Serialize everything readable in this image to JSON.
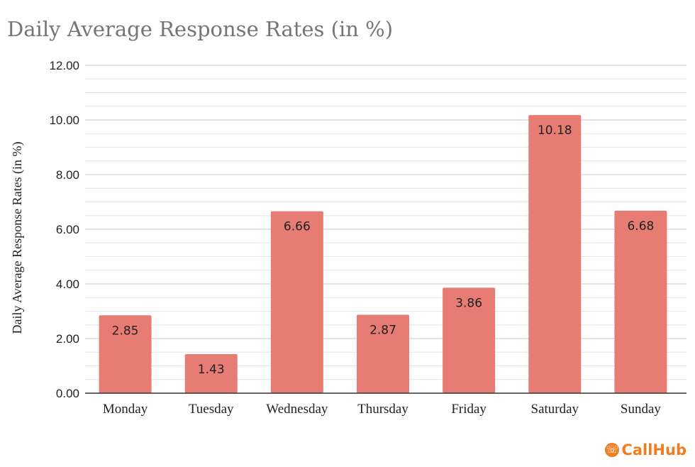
{
  "chart_data": {
    "type": "bar",
    "title": "Daily Average Response Rates (in %)",
    "ylabel": "Daily Average Response Rates (in %)",
    "xlabel": "",
    "categories": [
      "Monday",
      "Tuesday",
      "Wednesday",
      "Thursday",
      "Friday",
      "Saturday",
      "Sunday"
    ],
    "values": [
      2.85,
      1.43,
      6.66,
      2.87,
      3.86,
      10.18,
      6.68
    ],
    "data_labels": [
      "2.85",
      "1.43",
      "6.66",
      "2.87",
      "3.86",
      "10.18",
      "6.68"
    ],
    "ylim": [
      0,
      12
    ],
    "yticks": [
      "0.00",
      "2.00",
      "4.00",
      "6.00",
      "8.00",
      "10.00",
      "12.00"
    ],
    "bar_color": "#e67c73",
    "grid": true,
    "legend": "none"
  },
  "brand": {
    "name": "CallHub",
    "color": "#ef7d22",
    "icon": "callhub-logo-icon"
  }
}
